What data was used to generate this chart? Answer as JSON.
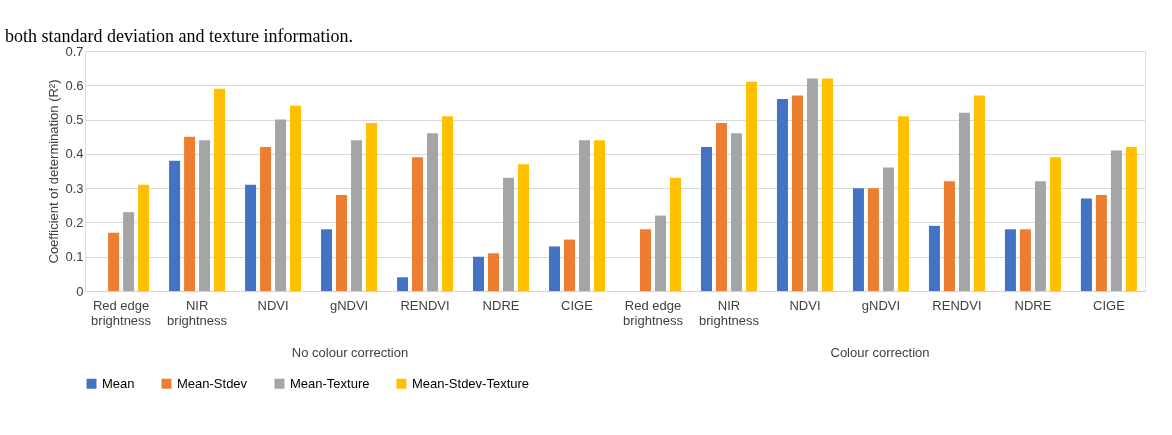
{
  "chart_data": {
    "type": "bar",
    "ylabel": "Coefficient of determination (R²)",
    "categories": [
      "Red edge brightness",
      "NIR brightness",
      "NDVI",
      "gNDVI",
      "RENDVI",
      "NDRE",
      "CIGE",
      "Red edge brightness",
      "NIR brightness",
      "NDVI",
      "gNDVI",
      "RENDVI",
      "NDRE",
      "CIGE"
    ],
    "series": [
      {
        "name": "Mean",
        "color": "#4472c4",
        "values": [
          null,
          0.38,
          0.31,
          0.18,
          0.04,
          0.1,
          0.13,
          null,
          0.42,
          0.56,
          0.3,
          0.19,
          0.18,
          0.27
        ]
      },
      {
        "name": "Mean-Stdev",
        "color": "#ed7d31",
        "values": [
          0.17,
          0.45,
          0.42,
          0.28,
          0.39,
          0.11,
          0.15,
          0.18,
          0.49,
          0.57,
          0.3,
          0.32,
          0.18,
          0.28
        ]
      },
      {
        "name": "Mean-Texture",
        "color": "#a5a5a5",
        "values": [
          0.23,
          0.44,
          0.5,
          0.44,
          0.46,
          0.33,
          0.44,
          0.22,
          0.46,
          0.62,
          0.36,
          0.52,
          0.32,
          0.41
        ]
      },
      {
        "name": "Mean-Stdev-Texture",
        "color": "#ffc000",
        "values": [
          0.31,
          0.59,
          0.54,
          0.49,
          0.51,
          0.37,
          0.44,
          0.33,
          0.61,
          0.62,
          0.51,
          0.57,
          0.39,
          0.42
        ]
      }
    ],
    "ylim": [
      0,
      0.7
    ],
    "yticks": [
      0,
      0.1,
      0.2,
      0.3,
      0.4,
      0.5,
      0.6,
      0.7
    ],
    "grid": "y",
    "legend": "bottom",
    "annotations": [
      "both standard deviation and texture information.",
      "No colour correction",
      "Colour correction"
    ]
  }
}
